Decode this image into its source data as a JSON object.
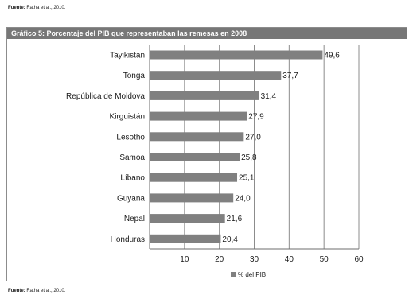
{
  "source_top": {
    "label": "Fuente:",
    "text": "Ratha et al., 2010."
  },
  "source_bottom": {
    "label": "Fuente:",
    "text": "Ratha et al., 2010."
  },
  "chart_data": {
    "type": "bar",
    "orientation": "horizontal",
    "title": "Gráfico 5: Porcentaje del PIB que representaban las remesas en 2008",
    "categories": [
      "Tayikistán",
      "Tonga",
      "República de Moldova",
      "Kirguistán",
      "Lesotho",
      "Samoa",
      "Líbano",
      "Guyana",
      "Nepal",
      "Honduras"
    ],
    "series": [
      {
        "name": "% del PIB",
        "values": [
          49.6,
          37.7,
          31.4,
          27.9,
          27.0,
          25.8,
          25.1,
          24.0,
          21.6,
          20.4
        ]
      }
    ],
    "value_labels": [
      "49,6",
      "37,7",
      "31,4",
      "27,9",
      "27,0",
      "25,8",
      "25,1",
      "24,0",
      "21,6",
      "20,4"
    ],
    "xlim": [
      0,
      60
    ],
    "xticks": [
      10,
      20,
      30,
      40,
      50,
      60
    ],
    "grid": true,
    "legend_position": "bottom",
    "bar_color": "#808080",
    "title_bar_color": "#777777"
  }
}
